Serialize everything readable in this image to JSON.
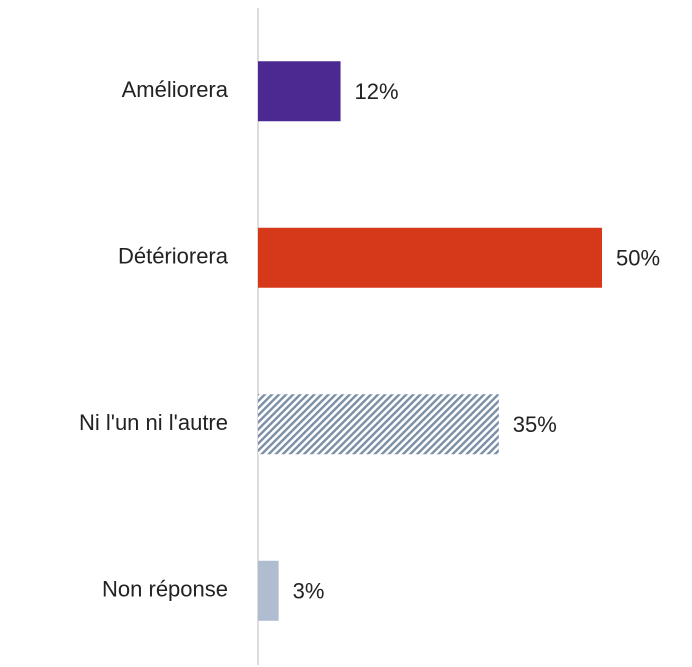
{
  "chart_data": {
    "type": "hbar",
    "categories": [
      "Améliorera",
      "Détériorera",
      "Ni l'un ni l'autre",
      "Non réponse"
    ],
    "values": [
      12,
      50,
      35,
      3
    ],
    "value_labels": [
      "12%",
      "50%",
      "35%",
      "3%"
    ],
    "colors": [
      "#4b2991",
      "#d6391a",
      "#7a8ea6",
      "#b0bccf"
    ],
    "hatched": [
      false,
      false,
      true,
      false
    ]
  }
}
